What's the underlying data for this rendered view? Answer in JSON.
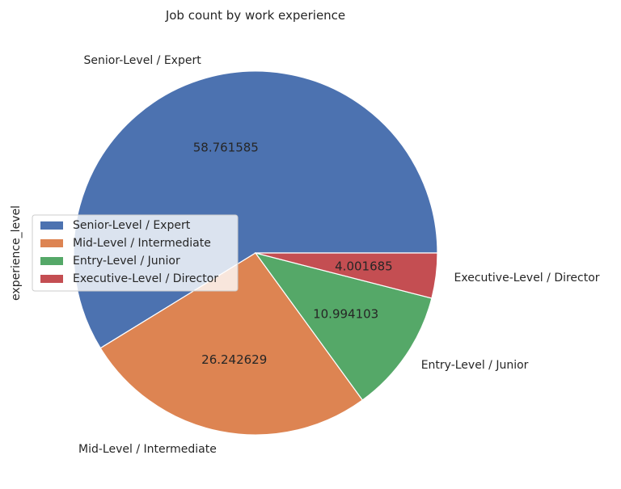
{
  "chart_data": {
    "type": "pie",
    "title": "Job count by work experience",
    "ylabel": "experience_level",
    "categories": [
      "Senior-Level / Expert",
      "Mid-Level / Intermediate",
      "Entry-Level / Junior",
      "Executive-Level / Director"
    ],
    "values": [
      58.761585,
      26.242629,
      10.994103,
      4.001685
    ],
    "value_labels": [
      "58.761585",
      "26.242629",
      "10.994103",
      "4.001685"
    ],
    "colors": [
      "#4c72b0",
      "#dd8452",
      "#55a868",
      "#c44e52"
    ],
    "legend": {
      "position": "center-left",
      "entries": [
        "Senior-Level / Expert",
        "Mid-Level / Intermediate",
        "Entry-Level / Junior",
        "Executive-Level / Director"
      ]
    }
  }
}
